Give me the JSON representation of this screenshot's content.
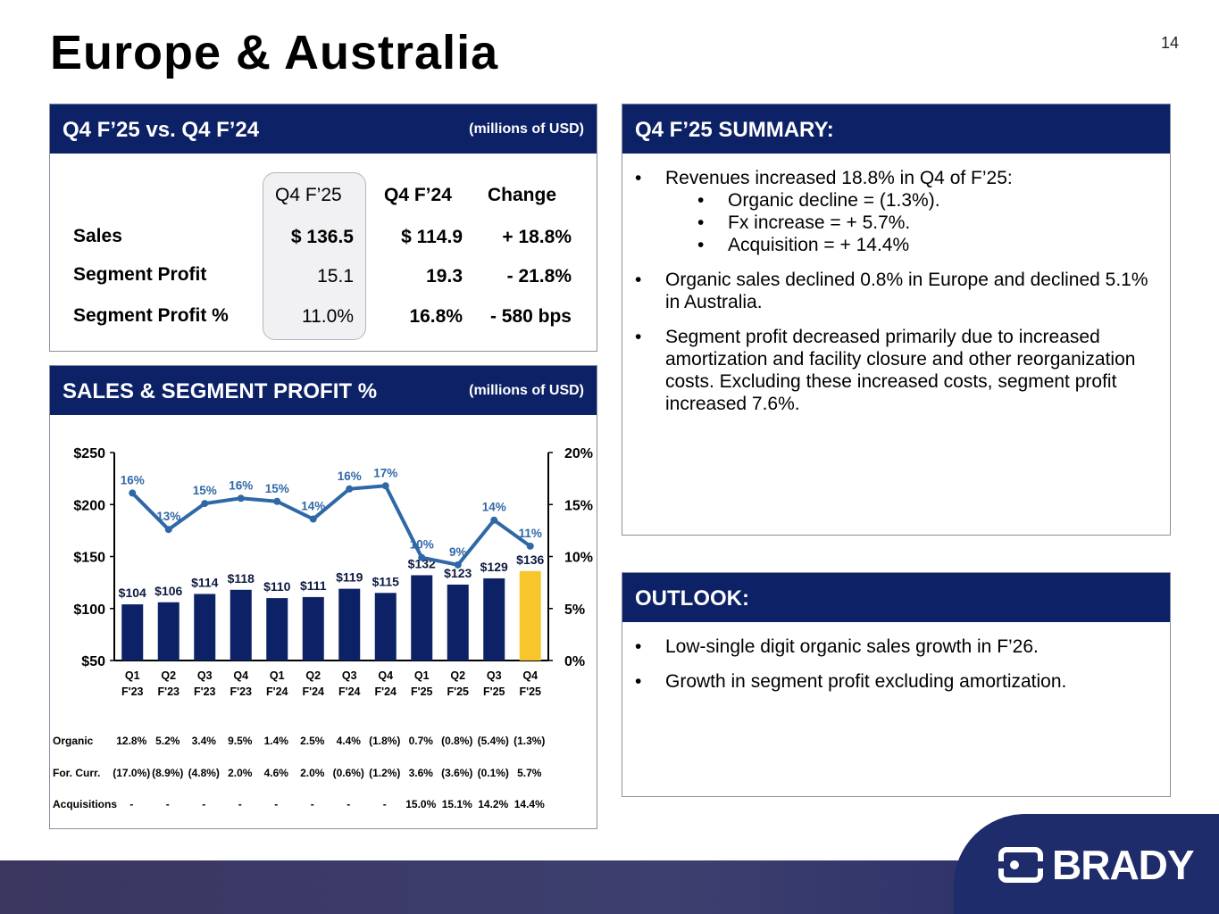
{
  "page": {
    "title": "Europe & Australia",
    "number": "14"
  },
  "comparison": {
    "header_title": "Q4 F’25 vs. Q4 F’24",
    "units": "(millions of USD)",
    "columns": [
      "Q4 F’25",
      "Q4 F’24",
      "Change"
    ],
    "rows": [
      {
        "label": "Sales",
        "values": [
          "$ 136.5",
          "$ 114.9",
          "+ 18.8%"
        ]
      },
      {
        "label": "Segment Profit",
        "values": [
          "15.1",
          "19.3",
          "- 21.8%"
        ]
      },
      {
        "label": "Segment Profit %",
        "values": [
          "11.0%",
          "16.8%",
          "- 580 bps"
        ]
      }
    ]
  },
  "chart_panel": {
    "header_title": "SALES & SEGMENT PROFIT %",
    "units": "(millions of USD)"
  },
  "chart_data": {
    "type": "bar",
    "categories": [
      "Q1 F'23",
      "Q2 F'23",
      "Q3 F'23",
      "Q4 F'23",
      "Q1 F'24",
      "Q2 F'24",
      "Q3 F'24",
      "Q4 F'24",
      "Q1 F'25",
      "Q2 F'25",
      "Q3 F'25",
      "Q4 F'25"
    ],
    "series": [
      {
        "kind": "bar",
        "values": [
          104,
          106,
          114,
          118,
          110,
          111,
          119,
          115,
          132,
          123,
          129,
          136
        ],
        "labels": [
          "$104",
          "$106",
          "$114",
          "$118",
          "$110",
          "$111",
          "$119",
          "$115",
          "$132",
          "$123",
          "$129",
          "$136"
        ],
        "color": "#0c2166",
        "highlight_color": "#f7c52c",
        "highlight_index": 11
      },
      {
        "kind": "line",
        "axis": "right",
        "values": [
          16.1,
          12.6,
          15.1,
          15.6,
          15.3,
          13.6,
          16.5,
          16.8,
          9.9,
          9.2,
          13.5,
          11.0
        ],
        "labels": [
          "16%",
          "13%",
          "15%",
          "16%",
          "15%",
          "14%",
          "16%",
          "17%",
          "10%",
          "9%",
          "14%",
          "11%"
        ],
        "color": "#2f68a6"
      }
    ],
    "y_left": {
      "range": [
        50,
        250
      ],
      "ticks": [
        "$50",
        "$100",
        "$150",
        "$200",
        "$250"
      ]
    },
    "y_right": {
      "range": [
        0,
        20
      ],
      "ticks": [
        "0%",
        "5%",
        "10%",
        "15%",
        "20%"
      ]
    },
    "grid": false,
    "table": [
      {
        "label": "Organic",
        "values": [
          "12.8%",
          "5.2%",
          "3.4%",
          "9.5%",
          "1.4%",
          "2.5%",
          "4.4%",
          "(1.8%)",
          "0.7%",
          "(0.8%)",
          "(5.4%)",
          "(1.3%)"
        ]
      },
      {
        "label": "For. Curr.",
        "values": [
          "(17.0%)",
          "(8.9%)",
          "(4.8%)",
          "2.0%",
          "4.6%",
          "2.0%",
          "(0.6%)",
          "(1.2%)",
          "3.6%",
          "(3.6%)",
          "(0.1%)",
          "5.7%"
        ]
      },
      {
        "label": "Acquisitions",
        "values": [
          "-",
          "-",
          "-",
          "-",
          "-",
          "-",
          "-",
          "-",
          "15.0%",
          "15.1%",
          "14.2%",
          "14.4%"
        ]
      }
    ]
  },
  "summary": {
    "header_title": "Q4 F’25 SUMMARY:",
    "b1": "Revenues increased 18.8% in Q4 of F’25:",
    "b1_subs": [
      "Organic decline = (1.3%).",
      "Fx increase = + 5.7%.",
      "Acquisition = + 14.4%"
    ],
    "b2": "Organic sales declined 0.8% in Europe and declined 5.1% in Australia.",
    "b3": "Segment profit decreased primarily due to increased amortization and facility closure and other reorganization costs.  Excluding these increased costs, segment profit increased 7.6%."
  },
  "outlook": {
    "header_title": "OUTLOOK:",
    "items": [
      "Low-single digit organic sales growth in F’26.",
      "Growth in segment profit excluding amortization."
    ]
  },
  "brand": {
    "logo_text": "BRADY",
    "logo_icon": "brady-logo-icon"
  },
  "bullet": "•"
}
